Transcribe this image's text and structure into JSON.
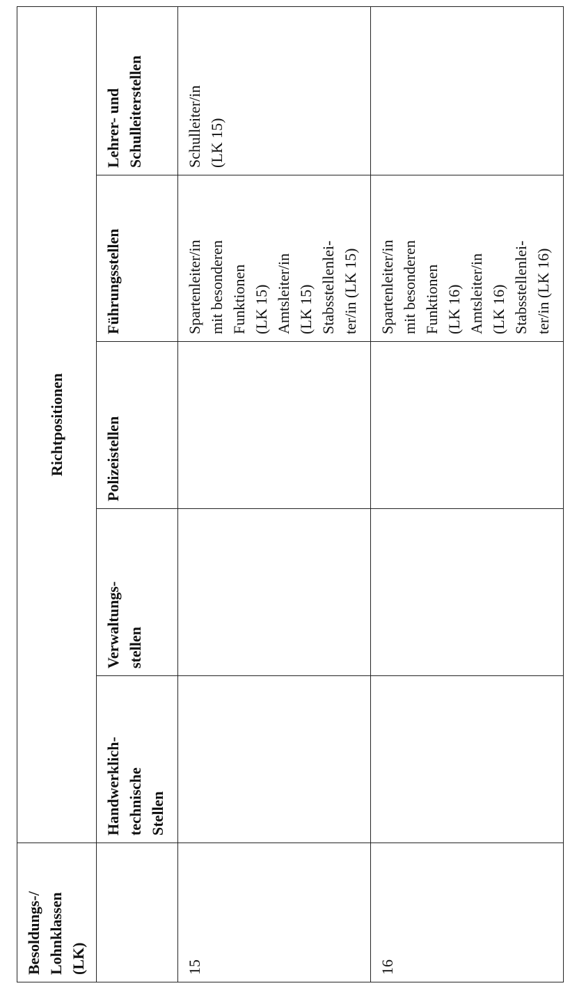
{
  "table": {
    "corner_header": "Besoldungs-/\nLohnklassen\n(LK)",
    "group_header": "Richtpositionen",
    "column_headers": [
      "Handwerklich-\ntechnische\nStellen",
      "Verwaltungs-\nstellen",
      "Polizeistellen",
      "Führungsstellen",
      "Lehrer- und\nSchulleiterstellen"
    ],
    "rows": [
      {
        "class": "15",
        "cells": [
          "",
          "",
          "",
          "Spartenleiter/in\nmit besonderen\nFunktionen\n(LK 15)\nAmtsleiter/in\n(LK 15)\nStabsstellenlei-\nter/in (LK 15)",
          "Schulleiter/in\n(LK 15)"
        ]
      },
      {
        "class": "16",
        "cells": [
          "",
          "",
          "",
          "Spartenleiter/in\nmit besonderen\nFunktionen\n(LK 16)\nAmtsleiter/in\n(LK 16)\nStabsstellenlei-\nter/in (LK 16)",
          ""
        ]
      }
    ]
  }
}
